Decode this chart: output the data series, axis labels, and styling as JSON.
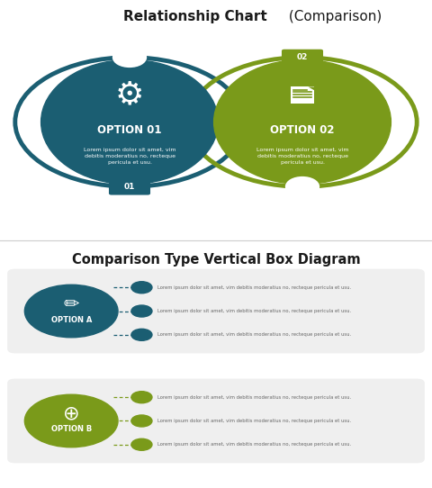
{
  "title1_bold": "Relationship Chart",
  "title1_normal": " (Comparison)",
  "title2": "Comparison Type Vertical Box Diagram",
  "teal_color": "#1b5e72",
  "green_color": "#7a9a1a",
  "light_gray": "#efefef",
  "white": "#ffffff",
  "dark_text": "#1a1a1a",
  "gray_text": "#666666",
  "option1_label": "OPTION 01",
  "option2_label": "OPTION 02",
  "optionA_label": "OPTION A",
  "optionB_label": "OPTION B",
  "lorem_short": "Lorem ipsum dolor sit amet, vim debitis moderatius no, recteque pericula et usu.",
  "lorem_multi": "Lorem ipsum dolor sit amet, vim\ndebitis moderatius no, recteque\npericula et usu.",
  "badge1": "01",
  "badge2": "02"
}
